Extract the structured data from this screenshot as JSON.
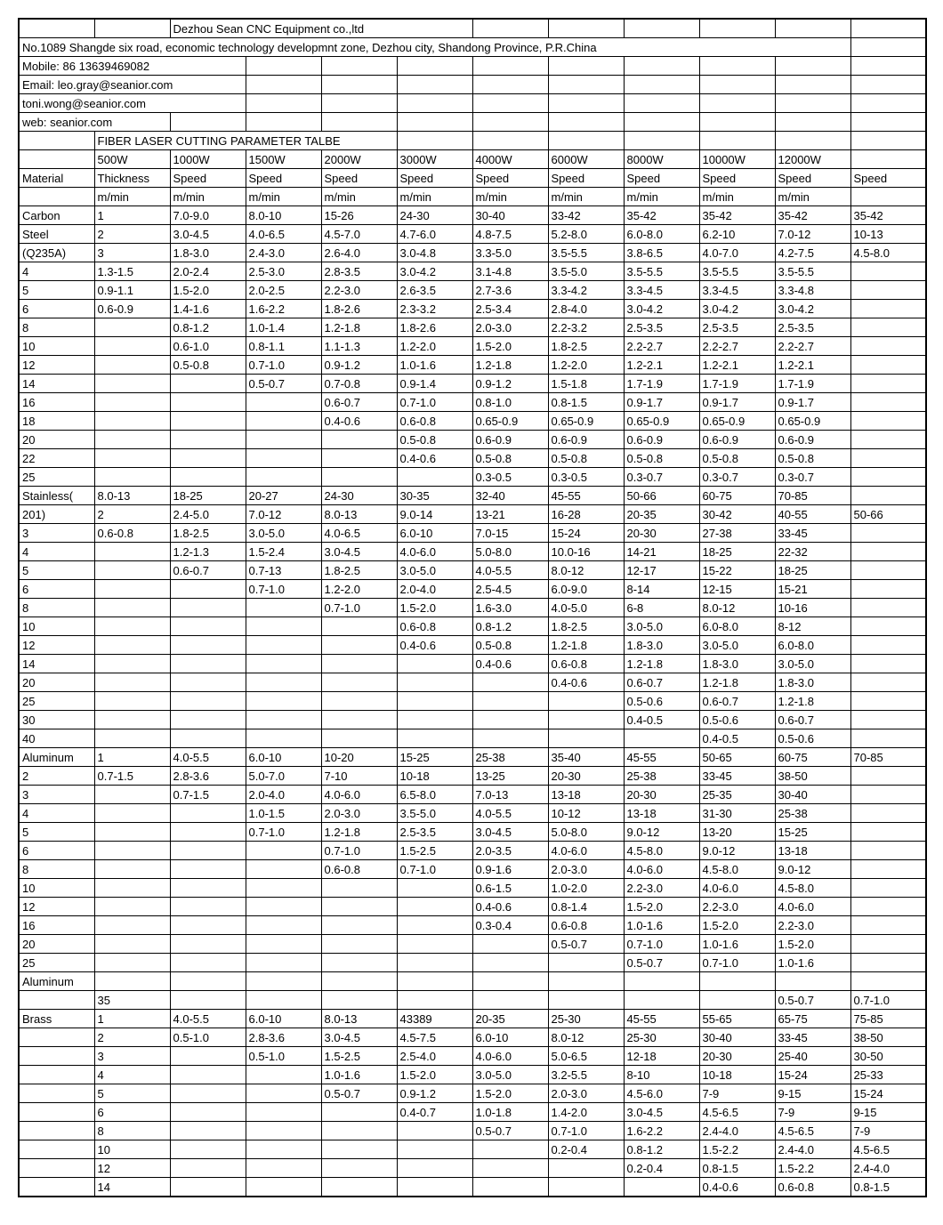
{
  "header": {
    "company": "Dezhou Sean CNC Equipment co.,ltd",
    "address": "No.1089 Shangde six road, economic technology developmnt zone, Dezhou city, Shandong Province, P.R.China",
    "mobile": "Mobile: 86 13639469082",
    "email1": "Email: leo.gray@seanior.com",
    "email2": "toni.wong@seanior.com",
    "web": "web: seanior.com",
    "title": "FIBER LASER CUTTING PARAMETER TALBE"
  },
  "powerCols": [
    "500W",
    "1000W",
    "1500W",
    "2000W",
    "3000W",
    "4000W",
    "6000W",
    "8000W",
    "10000W",
    "12000W",
    ""
  ],
  "headerRow": [
    "Material",
    "Thickness",
    "Speed",
    "Speed",
    "Speed",
    "Speed",
    "Speed",
    "Speed",
    "Speed",
    "Speed",
    "Speed",
    "Speed"
  ],
  "unitRow": [
    "",
    "m/min",
    "m/min",
    "m/min",
    "m/min",
    "m/min",
    "m/min",
    "m/min",
    "m/min",
    "m/min",
    "m/min",
    ""
  ],
  "rows": [
    [
      "Carbon",
      "1",
      "7.0-9.0",
      "8.0-10",
      "15-26",
      "24-30",
      "30-40",
      "33-42",
      "35-42",
      "35-42",
      "35-42",
      "35-42"
    ],
    [
      "Steel",
      "2",
      "3.0-4.5",
      "4.0-6.5",
      "4.5-7.0",
      "4.7-6.0",
      "4.8-7.5",
      "5.2-8.0",
      "6.0-8.0",
      "6.2-10",
      "7.0-12",
      "10-13"
    ],
    [
      "(Q235A)",
      "3",
      "1.8-3.0",
      "2.4-3.0",
      "2.6-4.0",
      "3.0-4.8",
      "3.3-5.0",
      "3.5-5.5",
      "3.8-6.5",
      "4.0-7.0",
      "4.2-7.5",
      "4.5-8.0"
    ],
    [
      "4",
      "1.3-1.5",
      "2.0-2.4",
      "2.5-3.0",
      "2.8-3.5",
      "3.0-4.2",
      "3.1-4.8",
      "3.5-5.0",
      "3.5-5.5",
      "3.5-5.5",
      "3.5-5.5",
      ""
    ],
    [
      "5",
      "0.9-1.1",
      "1.5-2.0",
      "2.0-2.5",
      "2.2-3.0",
      "2.6-3.5",
      "2.7-3.6",
      "3.3-4.2",
      "3.3-4.5",
      "3.3-4.5",
      "3.3-4.8",
      ""
    ],
    [
      "6",
      "0.6-0.9",
      "1.4-1.6",
      "1.6-2.2",
      "1.8-2.6",
      "2.3-3.2",
      "2.5-3.4",
      "2.8-4.0",
      "3.0-4.2",
      "3.0-4.2",
      "3.0-4.2",
      ""
    ],
    [
      "8",
      "",
      "0.8-1.2",
      "1.0-1.4",
      "1.2-1.8",
      "1.8-2.6",
      "2.0-3.0",
      "2.2-3.2",
      "2.5-3.5",
      "2.5-3.5",
      "2.5-3.5",
      ""
    ],
    [
      "10",
      "",
      "0.6-1.0",
      "0.8-1.1",
      "1.1-1.3",
      "1.2-2.0",
      "1.5-2.0",
      "1.8-2.5",
      "2.2-2.7",
      "2.2-2.7",
      "2.2-2.7",
      ""
    ],
    [
      "12",
      "",
      "0.5-0.8",
      "0.7-1.0",
      "0.9-1.2",
      "1.0-1.6",
      "1.2-1.8",
      "1.2-2.0",
      "1.2-2.1",
      "1.2-2.1",
      "1.2-2.1",
      ""
    ],
    [
      "14",
      "",
      "",
      "0.5-0.7",
      "0.7-0.8",
      "0.9-1.4",
      "0.9-1.2",
      "1.5-1.8",
      "1.7-1.9",
      "1.7-1.9",
      "1.7-1.9",
      ""
    ],
    [
      "16",
      "",
      "",
      "",
      "0.6-0.7",
      "0.7-1.0",
      "0.8-1.0",
      "0.8-1.5",
      "0.9-1.7",
      "0.9-1.7",
      "0.9-1.7",
      ""
    ],
    [
      "18",
      "",
      "",
      "",
      "0.4-0.6",
      "0.6-0.8",
      "0.65-0.9",
      "0.65-0.9",
      "0.65-0.9",
      "0.65-0.9",
      "0.65-0.9",
      ""
    ],
    [
      "20",
      "",
      "",
      "",
      "",
      "0.5-0.8",
      "0.6-0.9",
      "0.6-0.9",
      "0.6-0.9",
      "0.6-0.9",
      "0.6-0.9",
      ""
    ],
    [
      "22",
      "",
      "",
      "",
      "",
      "0.4-0.6",
      "0.5-0.8",
      "0.5-0.8",
      "0.5-0.8",
      "0.5-0.8",
      "0.5-0.8",
      ""
    ],
    [
      "25",
      "",
      "",
      "",
      "",
      "",
      "0.3-0.5",
      "0.3-0.5",
      "0.3-0.7",
      "0.3-0.7",
      "0.3-0.7",
      ""
    ],
    [
      "Stainless(",
      "8.0-13",
      "18-25",
      "20-27",
      "24-30",
      "30-35",
      "32-40",
      "45-55",
      "50-66",
      "60-75",
      "70-85",
      ""
    ],
    [
      "201)",
      "2",
      "2.4-5.0",
      "7.0-12",
      "8.0-13",
      "9.0-14",
      "13-21",
      "16-28",
      "20-35",
      "30-42",
      "40-55",
      "50-66"
    ],
    [
      "3",
      "0.6-0.8",
      "1.8-2.5",
      "3.0-5.0",
      "4.0-6.5",
      "6.0-10",
      "7.0-15",
      "15-24",
      "20-30",
      "27-38",
      "33-45",
      ""
    ],
    [
      "4",
      "",
      "1.2-1.3",
      "1.5-2.4",
      "3.0-4.5",
      "4.0-6.0",
      "5.0-8.0",
      "10.0-16",
      "14-21",
      "18-25",
      "22-32",
      ""
    ],
    [
      "5",
      "",
      "0.6-0.7",
      "0.7-13",
      "1.8-2.5",
      "3.0-5.0",
      "4.0-5.5",
      "8.0-12",
      "12-17",
      "15-22",
      "18-25",
      ""
    ],
    [
      "6",
      "",
      "",
      "0.7-1.0",
      "1.2-2.0",
      "2.0-4.0",
      "2.5-4.5",
      "6.0-9.0",
      "8-14",
      "12-15",
      "15-21",
      ""
    ],
    [
      "8",
      "",
      "",
      "",
      "0.7-1.0",
      "1.5-2.0",
      "1.6-3.0",
      "4.0-5.0",
      "6-8",
      "8.0-12",
      "10-16",
      ""
    ],
    [
      "10",
      "",
      "",
      "",
      "",
      "0.6-0.8",
      "0.8-1.2",
      "1.8-2.5",
      "3.0-5.0",
      "6.0-8.0",
      "8-12",
      ""
    ],
    [
      "12",
      "",
      "",
      "",
      "",
      "0.4-0.6",
      "0.5-0.8",
      "1.2-1.8",
      "1.8-3.0",
      "3.0-5.0",
      "6.0-8.0",
      ""
    ],
    [
      "14",
      "",
      "",
      "",
      "",
      "",
      "0.4-0.6",
      "0.6-0.8",
      "1.2-1.8",
      "1.8-3.0",
      "3.0-5.0",
      ""
    ],
    [
      "20",
      "",
      "",
      "",
      "",
      "",
      "",
      "0.4-0.6",
      "0.6-0.7",
      "1.2-1.8",
      "1.8-3.0",
      ""
    ],
    [
      "25",
      "",
      "",
      "",
      "",
      "",
      "",
      "",
      "0.5-0.6",
      "0.6-0.7",
      "1.2-1.8",
      ""
    ],
    [
      "30",
      "",
      "",
      "",
      "",
      "",
      "",
      "",
      "0.4-0.5",
      "0.5-0.6",
      "0.6-0.7",
      ""
    ],
    [
      "40",
      "",
      "",
      "",
      "",
      "",
      "",
      "",
      "",
      "0.4-0.5",
      "0.5-0.6",
      ""
    ],
    [
      "Aluminum",
      "1",
      "4.0-5.5",
      "6.0-10",
      "10-20",
      "15-25",
      "25-38",
      "35-40",
      "45-55",
      "50-65",
      "60-75",
      "70-85"
    ],
    [
      "2",
      "0.7-1.5",
      "2.8-3.6",
      "5.0-7.0",
      "7-10",
      "10-18",
      "13-25",
      "20-30",
      "25-38",
      "33-45",
      "38-50",
      ""
    ],
    [
      "3",
      "",
      "0.7-1.5",
      "2.0-4.0",
      "4.0-6.0",
      "6.5-8.0",
      "7.0-13",
      "13-18",
      "20-30",
      "25-35",
      "30-40",
      ""
    ],
    [
      "4",
      "",
      "",
      "1.0-1.5",
      "2.0-3.0",
      "3.5-5.0",
      "4.0-5.5",
      "10-12",
      "13-18",
      "31-30",
      "25-38",
      ""
    ],
    [
      "5",
      "",
      "",
      "0.7-1.0",
      "1.2-1.8",
      "2.5-3.5",
      "3.0-4.5",
      "5.0-8.0",
      "9.0-12",
      "13-20",
      "15-25",
      ""
    ],
    [
      "6",
      "",
      "",
      "",
      "0.7-1.0",
      "1.5-2.5",
      "2.0-3.5",
      "4.0-6.0",
      "4.5-8.0",
      "9.0-12",
      "13-18",
      ""
    ],
    [
      "8",
      "",
      "",
      "",
      "0.6-0.8",
      "0.7-1.0",
      "0.9-1.6",
      "2.0-3.0",
      "4.0-6.0",
      "4.5-8.0",
      "9.0-12",
      ""
    ],
    [
      "10",
      "",
      "",
      "",
      "",
      "",
      "0.6-1.5",
      "1.0-2.0",
      "2.2-3.0",
      "4.0-6.0",
      "4.5-8.0",
      ""
    ],
    [
      "12",
      "",
      "",
      "",
      "",
      "",
      "0.4-0.6",
      "0.8-1.4",
      "1.5-2.0",
      "2.2-3.0",
      "4.0-6.0",
      ""
    ],
    [
      "16",
      "",
      "",
      "",
      "",
      "",
      "0.3-0.4",
      "0.6-0.8",
      "1.0-1.6",
      "1.5-2.0",
      "2.2-3.0",
      ""
    ],
    [
      "20",
      "",
      "",
      "",
      "",
      "",
      "",
      "0.5-0.7",
      "0.7-1.0",
      "1.0-1.6",
      "1.5-2.0",
      ""
    ],
    [
      "25",
      "",
      "",
      "",
      "",
      "",
      "",
      "",
      "0.5-0.7",
      "0.7-1.0",
      "1.0-1.6",
      ""
    ],
    [
      "Aluminum",
      "",
      "",
      "",
      "",
      "",
      "",
      "",
      "",
      "",
      "",
      ""
    ],
    [
      "",
      "35",
      "",
      "",
      "",
      "",
      "",
      "",
      "",
      "",
      "0.5-0.7",
      "0.7-1.0"
    ],
    [
      "Brass",
      "1",
      "4.0-5.5",
      "6.0-10",
      "8.0-13",
      "43389",
      "20-35",
      "25-30",
      "45-55",
      "55-65",
      "65-75",
      "75-85"
    ],
    [
      "",
      "2",
      "0.5-1.0",
      "2.8-3.6",
      "3.0-4.5",
      "4.5-7.5",
      "6.0-10",
      "8.0-12",
      "25-30",
      "30-40",
      "33-45",
      "38-50"
    ],
    [
      "",
      "3",
      "",
      "0.5-1.0",
      "1.5-2.5",
      "2.5-4.0",
      "4.0-6.0",
      "5.0-6.5",
      "12-18",
      "20-30",
      "25-40",
      "30-50"
    ],
    [
      "",
      "4",
      "",
      "",
      "1.0-1.6",
      "1.5-2.0",
      "3.0-5.0",
      "3.2-5.5",
      "8-10",
      "10-18",
      "15-24",
      "25-33"
    ],
    [
      "",
      "5",
      "",
      "",
      "0.5-0.7",
      "0.9-1.2",
      "1.5-2.0",
      "2.0-3.0",
      "4.5-6.0",
      "7-9",
      "9-15",
      "15-24"
    ],
    [
      "",
      "6",
      "",
      "",
      "",
      "0.4-0.7",
      "1.0-1.8",
      "1.4-2.0",
      "3.0-4.5",
      "4.5-6.5",
      "7-9",
      "9-15"
    ],
    [
      "",
      "8",
      "",
      "",
      "",
      "",
      "0.5-0.7",
      "0.7-1.0",
      "1.6-2.2",
      "2.4-4.0",
      "4.5-6.5",
      "7-9"
    ],
    [
      "",
      "10",
      "",
      "",
      "",
      "",
      "",
      "0.2-0.4",
      "0.8-1.2",
      "1.5-2.2",
      "2.4-4.0",
      "4.5-6.5"
    ],
    [
      "",
      "12",
      "",
      "",
      "",
      "",
      "",
      "",
      "0.2-0.4",
      "0.8-1.5",
      "1.5-2.2",
      "2.4-4.0"
    ],
    [
      "",
      "14",
      "",
      "",
      "",
      "",
      "",
      "",
      "",
      "0.4-0.6",
      "0.6-0.8",
      "0.8-1.5"
    ]
  ]
}
